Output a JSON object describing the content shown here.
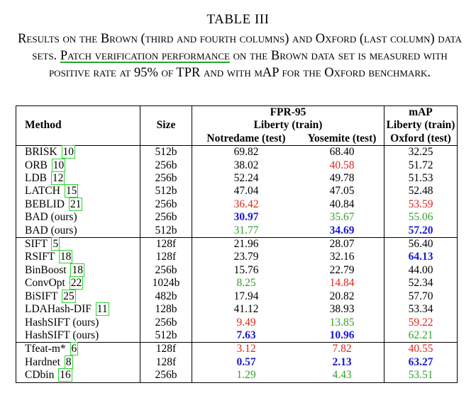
{
  "title": "TABLE III",
  "caption": {
    "part1": "Results on the Brown (third and fourth columns) and Oxford (last column) data sets.",
    "underlined": "Patch verification performance",
    "part2": "on the Brown data set is measured with positive rate at 95% of TPR and with mAP for the Oxford benchmark."
  },
  "header": {
    "method": "Method",
    "size": "Size",
    "fpr_group": "FPR-95",
    "fpr_train": "Liberty (train)",
    "notredame": "Notredame (test)",
    "yosemite": "Yosemite (test)",
    "map_group": "mAP",
    "map_train": "Liberty (train)",
    "oxford": "Oxford (test)"
  },
  "colors": {
    "red": "#e2231a",
    "green": "#33a02c",
    "blue": "#1717d6",
    "citation_box": "#2bd42b"
  },
  "groups": [
    [
      {
        "method": "BRISK",
        "cite": "10",
        "size": "512b",
        "notredame": {
          "v": "69.82",
          "s": "plain"
        },
        "yosemite": {
          "v": "68.40",
          "s": "plain"
        },
        "oxford": {
          "v": "32.25",
          "s": "plain"
        }
      },
      {
        "method": "ORB",
        "cite": "10",
        "size": "256b",
        "notredame": {
          "v": "38.02",
          "s": "plain"
        },
        "yosemite": {
          "v": "40.58",
          "s": "red"
        },
        "oxford": {
          "v": "51.72",
          "s": "plain"
        }
      },
      {
        "method": "LDB",
        "cite": "12",
        "size": "256b",
        "notredame": {
          "v": "52.24",
          "s": "plain"
        },
        "yosemite": {
          "v": "49.78",
          "s": "plain"
        },
        "oxford": {
          "v": "51.53",
          "s": "plain"
        }
      },
      {
        "method": "LATCH",
        "cite": "15",
        "size": "512b",
        "notredame": {
          "v": "47.04",
          "s": "plain"
        },
        "yosemite": {
          "v": "47.05",
          "s": "plain"
        },
        "oxford": {
          "v": "52.48",
          "s": "plain"
        }
      },
      {
        "method": "BEBLID",
        "cite": "21",
        "size": "256b",
        "notredame": {
          "v": "36.42",
          "s": "red"
        },
        "yosemite": {
          "v": "40.84",
          "s": "plain"
        },
        "oxford": {
          "v": "53.59",
          "s": "red"
        }
      },
      {
        "method": "BAD (ours)",
        "cite": "",
        "size": "256b",
        "notredame": {
          "v": "30.97",
          "s": "blue"
        },
        "yosemite": {
          "v": "35.67",
          "s": "green"
        },
        "oxford": {
          "v": "55.06",
          "s": "green"
        }
      },
      {
        "method": "BAD (ours)",
        "cite": "",
        "size": "512b",
        "notredame": {
          "v": "31.77",
          "s": "green"
        },
        "yosemite": {
          "v": "34.69",
          "s": "blue"
        },
        "oxford": {
          "v": "57.20",
          "s": "blue"
        }
      }
    ],
    [
      {
        "method": "SIFT",
        "cite": "5",
        "size": "128f",
        "notredame": {
          "v": "21.96",
          "s": "plain"
        },
        "yosemite": {
          "v": "28.07",
          "s": "plain"
        },
        "oxford": {
          "v": "56.40",
          "s": "plain"
        }
      },
      {
        "method": "RSIFT",
        "cite": "18",
        "size": "128f",
        "notredame": {
          "v": "23.79",
          "s": "plain"
        },
        "yosemite": {
          "v": "32.16",
          "s": "plain"
        },
        "oxford": {
          "v": "64.13",
          "s": "blue"
        }
      },
      {
        "method": "BinBoost",
        "cite": "18",
        "size": "256b",
        "notredame": {
          "v": "15.76",
          "s": "plain"
        },
        "yosemite": {
          "v": "22.79",
          "s": "plain"
        },
        "oxford": {
          "v": "44.00",
          "s": "plain"
        }
      },
      {
        "method": "ConvOpt",
        "cite": "22",
        "size": "1024b",
        "notredame": {
          "v": "8.25",
          "s": "green"
        },
        "yosemite": {
          "v": "14.84",
          "s": "red"
        },
        "oxford": {
          "v": "52.34",
          "s": "plain"
        }
      },
      {
        "method": "BiSIFT",
        "cite": "25",
        "size": "482b",
        "notredame": {
          "v": "17.94",
          "s": "plain"
        },
        "yosemite": {
          "v": "20.82",
          "s": "plain"
        },
        "oxford": {
          "v": "57.70",
          "s": "plain"
        }
      },
      {
        "method": "LDAHash-DIF",
        "cite": "11",
        "size": "128b",
        "notredame": {
          "v": "41.12",
          "s": "plain"
        },
        "yosemite": {
          "v": "38.93",
          "s": "plain"
        },
        "oxford": {
          "v": "53.34",
          "s": "plain"
        }
      },
      {
        "method": "HashSIFT (ours)",
        "cite": "",
        "size": "256b",
        "notredame": {
          "v": "9.49",
          "s": "red"
        },
        "yosemite": {
          "v": "13.85",
          "s": "green"
        },
        "oxford": {
          "v": "59.22",
          "s": "red"
        }
      },
      {
        "method": "HashSIFT (ours)",
        "cite": "",
        "size": "512b",
        "notredame": {
          "v": "7.63",
          "s": "blue"
        },
        "yosemite": {
          "v": "10.96",
          "s": "blue"
        },
        "oxford": {
          "v": "62.21",
          "s": "green"
        }
      }
    ],
    [
      {
        "method": "Tfeat-m*",
        "cite": "6",
        "size": "128f",
        "notredame": {
          "v": "3.12",
          "s": "red"
        },
        "yosemite": {
          "v": "7.82",
          "s": "red"
        },
        "oxford": {
          "v": "40.55",
          "s": "red"
        }
      },
      {
        "method": "Hardnet",
        "cite": "8",
        "size": "128f",
        "notredame": {
          "v": "0.57",
          "s": "blue"
        },
        "yosemite": {
          "v": "2.13",
          "s": "blue"
        },
        "oxford": {
          "v": "63.27",
          "s": "blue"
        }
      },
      {
        "method": "CDbin",
        "cite": "16",
        "size": "256b",
        "notredame": {
          "v": "1.29",
          "s": "green"
        },
        "yosemite": {
          "v": "4.43",
          "s": "green"
        },
        "oxford": {
          "v": "53.51",
          "s": "green"
        }
      }
    ]
  ]
}
